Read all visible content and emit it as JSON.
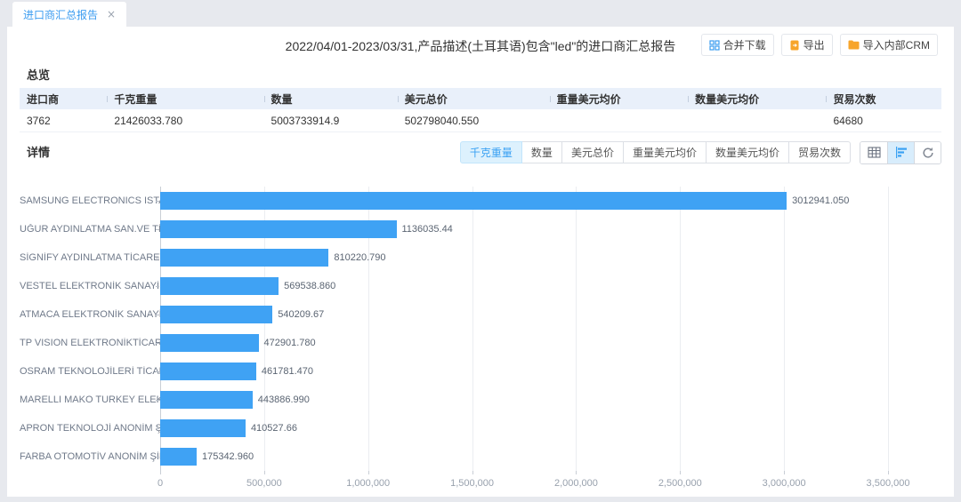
{
  "tab_bar": {
    "active_tab": "进口商汇总报告",
    "close": "×"
  },
  "header": {
    "title": "2022/04/01-2023/03/31,产品描述(土耳其语)包含\"led\"的进口商汇总报告",
    "buttons": {
      "merge_download": "合并下载",
      "export": "导出",
      "import_crm": "导入内部CRM"
    }
  },
  "overview": {
    "section_title": "总览",
    "columns": [
      "进口商",
      "千克重量",
      "数量",
      "美元总价",
      "重量美元均价",
      "数量美元均价",
      "贸易次数"
    ],
    "row": [
      "3762",
      "21426033.780",
      "5003733914.9",
      "502798040.550",
      "",
      "",
      "64680"
    ]
  },
  "details": {
    "section_title": "详情",
    "metric_tabs": [
      "千克重量",
      "数量",
      "美元总价",
      "重量美元均价",
      "数量美元均价",
      "贸易次数"
    ],
    "active_metric": "千克重量",
    "view_icons": [
      "table-view-icon",
      "bar-chart-view-icon",
      "refresh-icon"
    ],
    "active_view": "bar-chart-view-icon"
  },
  "chart_data": {
    "type": "bar",
    "orientation": "horizontal",
    "categories": [
      "SAMSUNG ELECTRONICS ISTANBUL P...",
      "UĞUR AYDINLATMA SAN.VE TİC.LTD...",
      "SİGNİFY AYDINLATMA TİCARET ANO...",
      "VESTEL ELEKTRONİK SANAYİ VE Tİ...",
      "ATMACA ELEKTRONİK SANAYİ VE Tİ...",
      "TP VISION ELEKTRONİKTİCARET AN...",
      "OSRAM TEKNOLOJİLERİ TİCARET AN...",
      "MARELLI MAKO TURKEY ELEKTRİK S...",
      "APRON TEKNOLOJİ ANONİM ŞİRKETİ",
      "FARBA OTOMOTİV ANONİM ŞİRKETİ"
    ],
    "values": [
      3012941.05,
      1136035.44,
      810220.79,
      569538.86,
      540209.67,
      472901.78,
      461781.47,
      443886.99,
      410527.66,
      175342.96
    ],
    "value_labels": [
      "3012941.050",
      "1136035.44",
      "810220.790",
      "569538.860",
      "540209.67",
      "472901.780",
      "461781.470",
      "443886.990",
      "410527.66",
      "175342.960"
    ],
    "title": "千克重量",
    "xlabel": "",
    "ylabel": "",
    "xlim": [
      0,
      3500000
    ],
    "x_ticks": [
      "0",
      "500,000",
      "1,000,000",
      "1,500,000",
      "2,000,000",
      "2,500,000",
      "3,000,000",
      "3,500,000"
    ],
    "grid": true,
    "bar_color": "#3fa2f4"
  },
  "colors": {
    "accent_blue": "#3b9cf0",
    "bar_blue": "#3fa2f4",
    "icon_orange": "#f7a52b",
    "table_header_bg": "#e9f0fa",
    "active_metric_bg": "#ddf1fd"
  }
}
